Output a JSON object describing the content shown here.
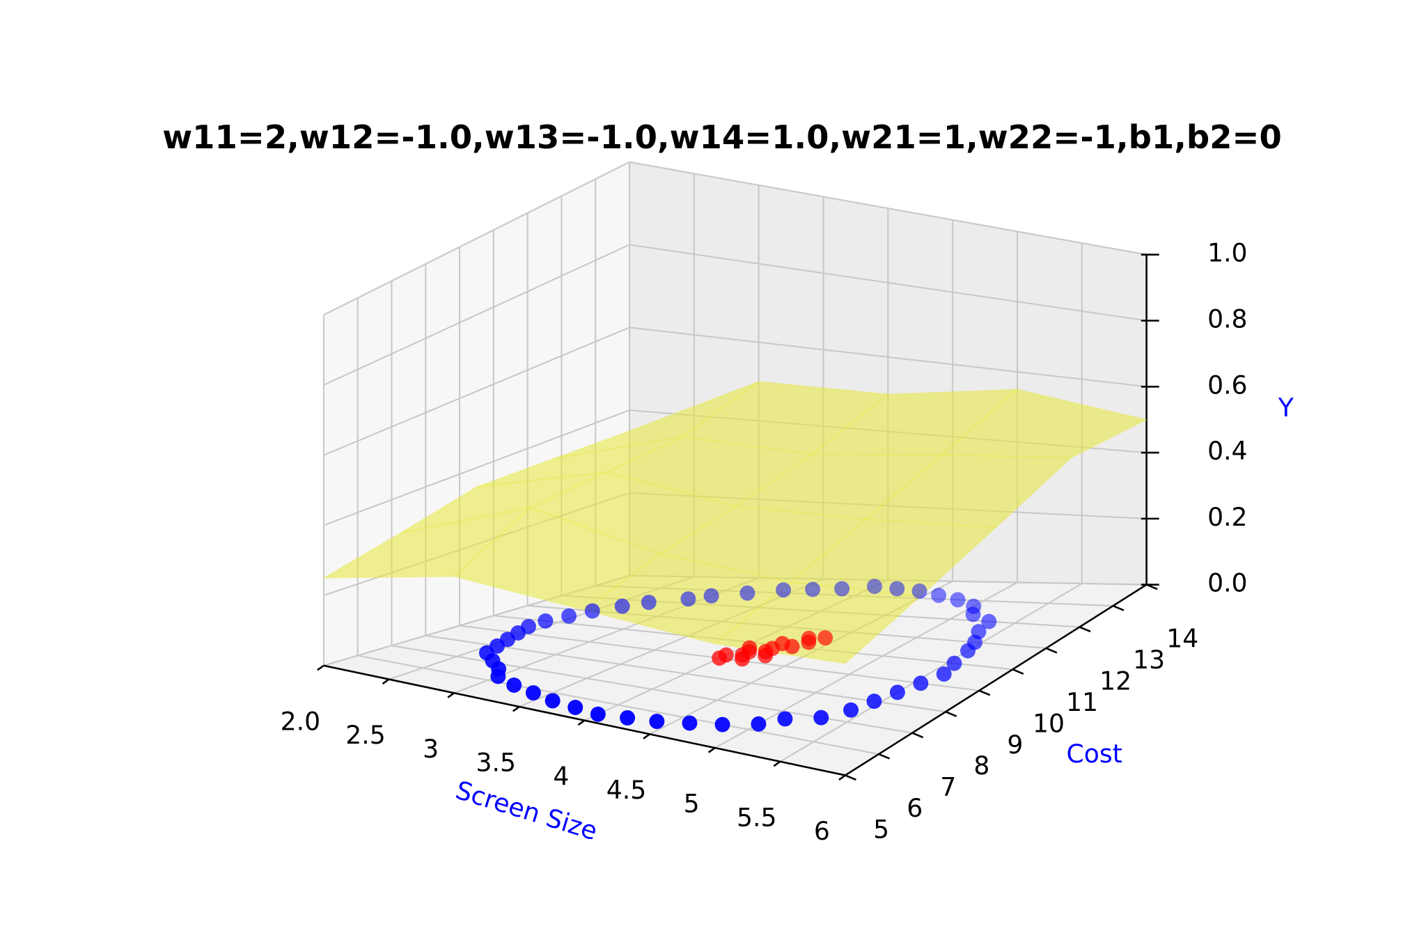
{
  "chart_data": {
    "type": "scatter3d",
    "title": "w11=2,w12=-1.0,w13=-1.0,w14=1.0,w21=1,w22=-1,b1,b2=0",
    "xlabel": "Screen Size",
    "ylabel": "Cost",
    "zlabel": "Y",
    "xlim": [
      2,
      6
    ],
    "ylim": [
      5,
      14
    ],
    "zlim": [
      0,
      1
    ],
    "xticks": [
      {
        "value": 2,
        "label": "2.0"
      },
      2.5,
      3,
      3.5,
      4,
      4.5,
      5,
      5.5,
      6
    ],
    "yticks": [
      5,
      6,
      7,
      8,
      9,
      10,
      11,
      12,
      13,
      14
    ],
    "zticks": [
      {
        "value": 0,
        "label": "0.0"
      },
      0.2,
      0.4,
      0.6,
      0.8,
      {
        "value": 1,
        "label": "1.0"
      }
    ],
    "grid": true,
    "surface": {
      "color": "#e8e83a",
      "x": [
        2,
        3,
        4,
        5,
        6
      ],
      "y": [
        5,
        7.25,
        9.5,
        11.75,
        14
      ],
      "z": [
        [
          0.25,
          0.35,
          0.35,
          0.35,
          0.4
        ],
        [
          0.3,
          0.45,
          0.4,
          0.4,
          0.45
        ],
        [
          0.35,
          0.45,
          0.42,
          0.45,
          0.5
        ],
        [
          0.35,
          0.45,
          0.45,
          0.5,
          0.55
        ],
        [
          0.35,
          0.5,
          0.5,
          0.55,
          0.5
        ]
      ]
    },
    "series": [
      {
        "color": "#0000ff",
        "x": [
          5.6,
          5.55,
          5.5,
          5.45,
          5.35,
          5.3,
          5.1,
          5.0,
          4.8,
          4.6,
          4.4,
          4.2,
          4.0,
          3.8,
          3.6,
          3.4,
          3.2,
          3.0,
          2.9,
          2.7,
          2.6,
          2.5,
          2.45,
          2.4,
          2.4,
          2.45,
          2.5,
          2.55,
          2.6,
          2.75,
          2.9,
          3.0,
          3.2,
          3.4,
          3.6,
          3.8,
          4.0,
          4.2,
          4.4,
          4.6,
          4.8,
          5.0,
          5.1,
          5.3,
          5.4,
          5.45,
          5.5,
          5.55
        ],
        "y": [
          9.5,
          10.0,
          10.6,
          11.0,
          11.5,
          12.0,
          12.3,
          12.7,
          13.0,
          13.2,
          13.4,
          13.5,
          13.6,
          13.4,
          13.3,
          13.2,
          12.9,
          12.6,
          12.3,
          11.9,
          11.5,
          11.0,
          10.5,
          10.0,
          9.5,
          9.0,
          8.5,
          8.0,
          7.5,
          7.1,
          6.7,
          6.3,
          6.0,
          5.8,
          5.6,
          5.5,
          5.4,
          5.5,
          5.6,
          5.8,
          6.0,
          6.3,
          6.7,
          7.0,
          7.5,
          8.0,
          8.5,
          9.0
        ],
        "z": [
          0,
          0,
          0,
          0,
          0,
          0,
          0,
          0,
          0,
          0,
          0,
          0,
          0,
          0,
          0,
          0,
          0,
          0,
          0,
          0,
          0,
          0,
          0,
          0,
          0,
          0,
          0,
          0,
          0,
          0,
          0,
          0,
          0,
          0,
          0,
          0,
          0,
          0,
          0,
          0,
          0,
          0,
          0,
          0,
          0,
          0,
          0,
          0
        ]
      },
      {
        "color": "#ff0000",
        "x": [
          4.0,
          4.1,
          4.2,
          4.15,
          4.3,
          4.25,
          4.05,
          4.35,
          4.2,
          4.1,
          4.3,
          4.0,
          4.4,
          4.2
        ],
        "y": [
          9.0,
          9.3,
          9.6,
          9.1,
          10.0,
          9.4,
          9.7,
          10.3,
          10.1,
          9.5,
          10.5,
          9.2,
          10.6,
          9.8
        ],
        "z": [
          0,
          0,
          0,
          0,
          0,
          0,
          0,
          0,
          0,
          0,
          0,
          0,
          0,
          0
        ]
      }
    ]
  }
}
